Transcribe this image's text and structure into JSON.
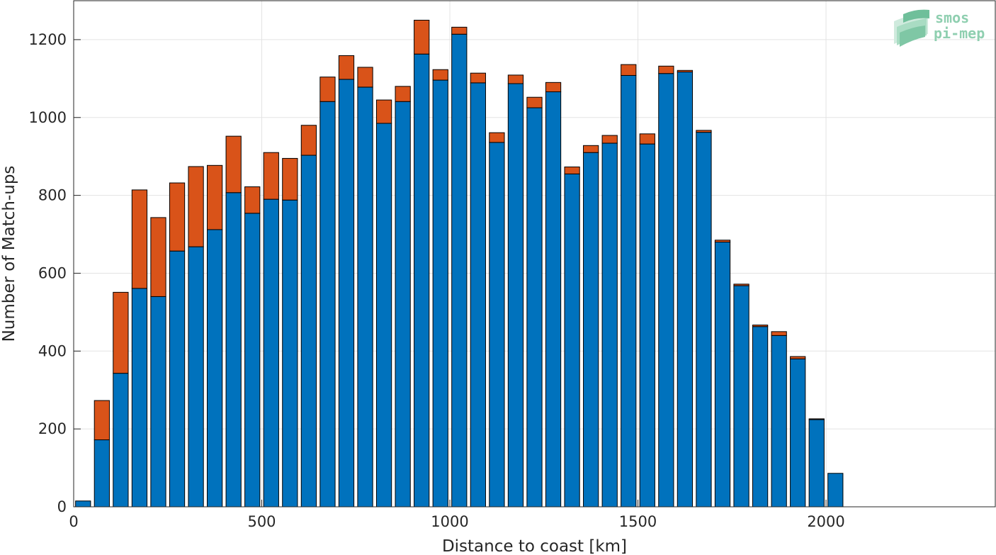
{
  "chart_data": {
    "type": "bar",
    "stacked": true,
    "bin_width": 50,
    "x": [
      25,
      75,
      125,
      175,
      225,
      275,
      325,
      375,
      425,
      475,
      525,
      575,
      625,
      675,
      725,
      775,
      825,
      875,
      925,
      975,
      1025,
      1075,
      1125,
      1175,
      1225,
      1275,
      1325,
      1375,
      1425,
      1475,
      1525,
      1575,
      1625,
      1675,
      1725,
      1775,
      1825,
      1875,
      1925,
      1975,
      2025
    ],
    "series": [
      {
        "color": "#0072bd",
        "values": [
          15,
          172,
          343,
          561,
          540,
          657,
          668,
          712,
          807,
          754,
          790,
          788,
          903,
          1041,
          1098,
          1078,
          985,
          1041,
          1163,
          1096,
          1214,
          1089,
          936,
          1087,
          1025,
          1066,
          855,
          910,
          934,
          1108,
          932,
          1113,
          1117,
          962,
          680,
          568,
          463,
          440,
          380,
          224,
          86
        ]
      },
      {
        "color": "#d95319",
        "values": [
          0,
          101,
          208,
          253,
          203,
          175,
          206,
          165,
          145,
          68,
          120,
          107,
          77,
          63,
          61,
          51,
          60,
          39,
          87,
          27,
          18,
          25,
          25,
          22,
          27,
          24,
          18,
          18,
          20,
          28,
          26,
          19,
          4,
          5,
          5,
          4,
          4,
          10,
          6,
          2,
          0
        ]
      }
    ],
    "xlabel": "Distance to coast [km]",
    "ylabel": "Number of Match-ups",
    "xlim": [
      0,
      2450
    ],
    "ylim": [
      0,
      1300
    ],
    "xticks": [
      0,
      500,
      1000,
      1500,
      2000
    ],
    "yticks": [
      0,
      200,
      400,
      600,
      800,
      1000,
      1200
    ],
    "grid": true
  },
  "logo": {
    "line1": "smos",
    "line2": "pi-mep"
  }
}
